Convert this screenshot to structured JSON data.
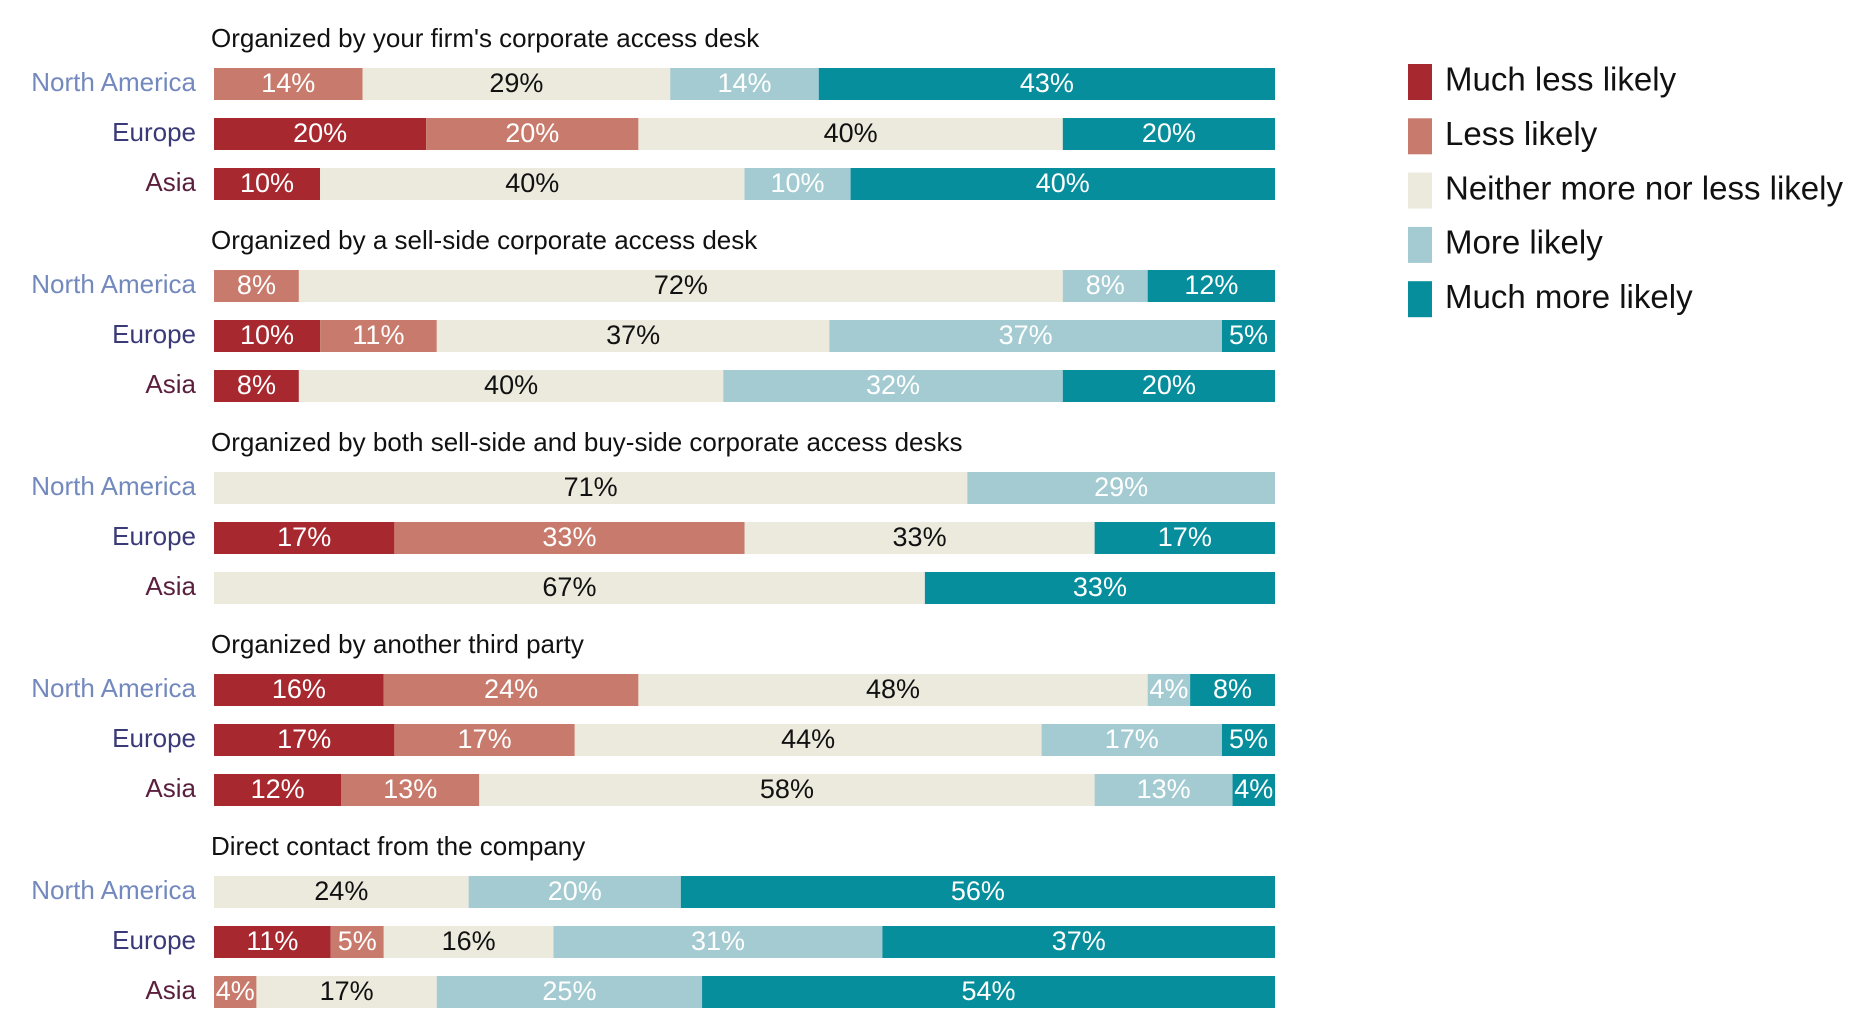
{
  "chart_data": [
    {
      "type": "stacked-bar",
      "title": "Organized by your firm's corporate access desk",
      "categories": [
        "North America",
        "Europe",
        "Asia"
      ],
      "category_colors": [
        "#7389bd",
        "#3a3a78",
        "#5b1f3e"
      ],
      "xlim": [
        0,
        100
      ],
      "series": [
        {
          "name": "Much less likely",
          "color": "#a7292f",
          "label_color": "#ffffff",
          "values": [
            null,
            20,
            10
          ],
          "value_labels": [
            null,
            "20%",
            "10%"
          ]
        },
        {
          "name": "Less likely",
          "color": "#c87b6c",
          "label_color": "#ffffff",
          "values": [
            14,
            20,
            null
          ],
          "value_labels": [
            "14%",
            "20%",
            null
          ]
        },
        {
          "name": "Neither more nor less likely",
          "color": "#ece9dd",
          "label_color": "#111111",
          "values": [
            29,
            40,
            40
          ],
          "value_labels": [
            "29%",
            "40%",
            "40%"
          ]
        },
        {
          "name": "More likely",
          "color": "#a3cbd1",
          "label_color": "#ffffff",
          "values": [
            14,
            null,
            10
          ],
          "value_labels": [
            "14%",
            null,
            "10%"
          ]
        },
        {
          "name": "Much more likely",
          "color": "#068e9c",
          "label_color": "#ffffff",
          "values": [
            43,
            20,
            40
          ],
          "value_labels": [
            "43%",
            "20%",
            "40%"
          ]
        }
      ]
    },
    {
      "type": "stacked-bar",
      "title": "Organized by a sell-side corporate access desk",
      "categories": [
        "North America",
        "Europe",
        "Asia"
      ],
      "category_colors": [
        "#7389bd",
        "#3a3a78",
        "#5b1f3e"
      ],
      "xlim": [
        0,
        100
      ],
      "series": [
        {
          "name": "Much less likely",
          "color": "#a7292f",
          "label_color": "#ffffff",
          "values": [
            null,
            10,
            8
          ],
          "value_labels": [
            null,
            "10%",
            "8%"
          ]
        },
        {
          "name": "Less likely",
          "color": "#c87b6c",
          "label_color": "#ffffff",
          "values": [
            8,
            11,
            null
          ],
          "value_labels": [
            "8%",
            "11%",
            null
          ]
        },
        {
          "name": "Neither more nor less likely",
          "color": "#ece9dd",
          "label_color": "#111111",
          "values": [
            72,
            37,
            40
          ],
          "value_labels": [
            "72%",
            "37%",
            "40%"
          ]
        },
        {
          "name": "More likely",
          "color": "#a3cbd1",
          "label_color": "#ffffff",
          "values": [
            8,
            37,
            32
          ],
          "value_labels": [
            "8%",
            "37%",
            "32%"
          ]
        },
        {
          "name": "Much more likely",
          "color": "#068e9c",
          "label_color": "#ffffff",
          "values": [
            12,
            5,
            20
          ],
          "value_labels": [
            "12%",
            "5%",
            "20%"
          ]
        }
      ]
    },
    {
      "type": "stacked-bar",
      "title": "Organized by both sell-side and buy-side corporate access desks",
      "categories": [
        "North America",
        "Europe",
        "Asia"
      ],
      "category_colors": [
        "#7389bd",
        "#3a3a78",
        "#5b1f3e"
      ],
      "xlim": [
        0,
        100
      ],
      "series": [
        {
          "name": "Much less likely",
          "color": "#a7292f",
          "label_color": "#ffffff",
          "values": [
            null,
            17,
            null
          ],
          "value_labels": [
            null,
            "17%",
            null
          ]
        },
        {
          "name": "Less likely",
          "color": "#c87b6c",
          "label_color": "#ffffff",
          "values": [
            null,
            33,
            null
          ],
          "value_labels": [
            null,
            "33%",
            null
          ]
        },
        {
          "name": "Neither more nor less likely",
          "color": "#ece9dd",
          "label_color": "#111111",
          "values": [
            71,
            33,
            67
          ],
          "value_labels": [
            "71%",
            "33%",
            "67%"
          ]
        },
        {
          "name": "More likely",
          "color": "#a3cbd1",
          "label_color": "#ffffff",
          "values": [
            29,
            null,
            null
          ],
          "value_labels": [
            "29%",
            null,
            null
          ]
        },
        {
          "name": "Much more likely",
          "color": "#068e9c",
          "label_color": "#ffffff",
          "values": [
            null,
            17,
            33
          ],
          "value_labels": [
            null,
            "17%",
            "33%"
          ]
        }
      ]
    },
    {
      "type": "stacked-bar",
      "title": "Organized by another third party",
      "categories": [
        "North America",
        "Europe",
        "Asia"
      ],
      "category_colors": [
        "#7389bd",
        "#3a3a78",
        "#5b1f3e"
      ],
      "xlim": [
        0,
        100
      ],
      "series": [
        {
          "name": "Much less likely",
          "color": "#a7292f",
          "label_color": "#ffffff",
          "values": [
            16,
            17,
            12
          ],
          "value_labels": [
            "16%",
            "17%",
            "12%"
          ]
        },
        {
          "name": "Less likely",
          "color": "#c87b6c",
          "label_color": "#ffffff",
          "values": [
            24,
            17,
            13
          ],
          "value_labels": [
            "24%",
            "17%",
            "13%"
          ]
        },
        {
          "name": "Neither more nor less likely",
          "color": "#ece9dd",
          "label_color": "#111111",
          "values": [
            48,
            44,
            58
          ],
          "value_labels": [
            "48%",
            "44%",
            "58%"
          ]
        },
        {
          "name": "More likely",
          "color": "#a3cbd1",
          "label_color": "#ffffff",
          "values": [
            4,
            17,
            13
          ],
          "value_labels": [
            "4%",
            "17%",
            "13%"
          ]
        },
        {
          "name": "Much more likely",
          "color": "#068e9c",
          "label_color": "#ffffff",
          "values": [
            8,
            5,
            4
          ],
          "value_labels": [
            "8%",
            "5%",
            "4%"
          ]
        }
      ]
    },
    {
      "type": "stacked-bar",
      "title": "Direct contact from the company",
      "categories": [
        "North America",
        "Europe",
        "Asia"
      ],
      "category_colors": [
        "#7389bd",
        "#3a3a78",
        "#5b1f3e"
      ],
      "xlim": [
        0,
        100
      ],
      "series": [
        {
          "name": "Much less likely",
          "color": "#a7292f",
          "label_color": "#ffffff",
          "values": [
            null,
            11,
            null
          ],
          "value_labels": [
            null,
            "11%",
            null
          ]
        },
        {
          "name": "Less likely",
          "color": "#c87b6c",
          "label_color": "#ffffff",
          "values": [
            null,
            5,
            4
          ],
          "value_labels": [
            null,
            "5%",
            "4%"
          ]
        },
        {
          "name": "Neither more nor less likely",
          "color": "#ece9dd",
          "label_color": "#111111",
          "values": [
            24,
            16,
            17
          ],
          "value_labels": [
            "24%",
            "16%",
            "17%"
          ]
        },
        {
          "name": "More likely",
          "color": "#a3cbd1",
          "label_color": "#ffffff",
          "values": [
            20,
            31,
            25
          ],
          "value_labels": [
            "20%",
            "31%",
            "25%"
          ]
        },
        {
          "name": "Much more likely",
          "color": "#068e9c",
          "label_color": "#ffffff",
          "values": [
            56,
            37,
            54
          ],
          "value_labels": [
            "56%",
            "37%",
            "54%"
          ]
        }
      ]
    }
  ]
}
